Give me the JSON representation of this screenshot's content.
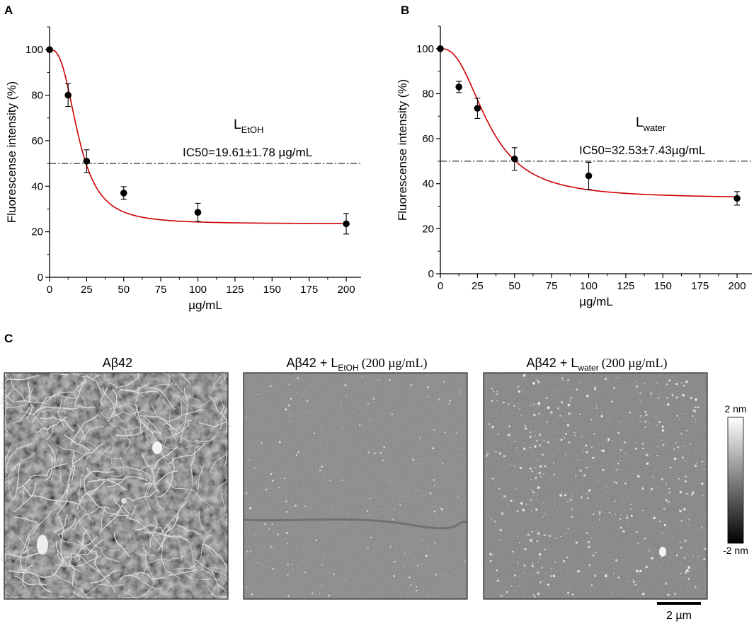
{
  "chart_data": [
    {
      "panel": "A",
      "type": "scatter",
      "xlabel": "µg/mL",
      "ylabel": "Fluorescense intensity (%)",
      "xlim": [
        0,
        210
      ],
      "ylim": [
        0,
        110
      ],
      "xticks": [
        0,
        25,
        50,
        75,
        100,
        125,
        150,
        175,
        200
      ],
      "yticks": [
        0,
        20,
        40,
        60,
        80,
        100
      ],
      "series": [
        {
          "x": [
            0,
            12.5,
            25,
            50,
            100,
            200
          ],
          "y": [
            100,
            80,
            51,
            37,
            28.5,
            23.5
          ],
          "err": [
            0,
            5,
            5,
            2.8,
            4,
            4.5
          ]
        }
      ],
      "fit": {
        "top": 100,
        "bottom": 23.5,
        "ic50": 19.61,
        "hill": 2.8,
        "color": "#cc0000"
      },
      "reference_line": {
        "y": 50,
        "style": "dash-dot"
      },
      "annotation": {
        "label_main": "L",
        "label_sub": "EtOH",
        "ic50_text": "IC50=19.61±1.78 µg/mL"
      }
    },
    {
      "panel": "B",
      "type": "scatter",
      "xlabel": "µg/mL",
      "ylabel": "Fluorescense intensity (%)",
      "xlim": [
        0,
        210
      ],
      "ylim": [
        0,
        110
      ],
      "xticks": [
        0,
        25,
        50,
        75,
        100,
        125,
        150,
        175,
        200
      ],
      "yticks": [
        0,
        20,
        40,
        60,
        80,
        100
      ],
      "series": [
        {
          "x": [
            0,
            12.5,
            25,
            50,
            100,
            200
          ],
          "y": [
            100,
            83,
            73.5,
            51,
            43.5,
            33.5
          ],
          "err": [
            0,
            2.5,
            4.5,
            5,
            6,
            3
          ]
        }
      ],
      "fit": {
        "top": 100,
        "bottom": 33.5,
        "ic50": 32.53,
        "hill": 2.5,
        "color": "#cc0000"
      },
      "reference_line": {
        "y": 50,
        "style": "dash-dot"
      },
      "annotation": {
        "label_main": "L",
        "label_sub": "water",
        "ic50_text": "IC50=32.53±7.43µg/mL"
      }
    }
  ],
  "panel_c": {
    "panel": "C",
    "images": [
      {
        "title_main": "Aβ42",
        "title_sub": "",
        "title_conc": ""
      },
      {
        "title_main": "Aβ42 + L",
        "title_sub": "EtOH",
        "title_conc": "(200 µg/mL)"
      },
      {
        "title_main": "Aβ42 + L",
        "title_sub": "water",
        "title_conc": "(200 µg/mL)"
      }
    ],
    "colorbar": {
      "max_label": "2 nm",
      "min_label": "-2 nm"
    },
    "scalebar": {
      "label": "2 µm"
    }
  }
}
